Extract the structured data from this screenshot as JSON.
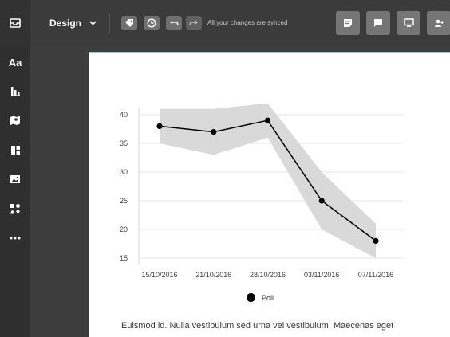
{
  "toolbar": {
    "mode_label": "Design",
    "sync_status": "All your changes are synced",
    "tools": [
      {
        "icon": "tag-icon"
      },
      {
        "icon": "clock-icon"
      },
      {
        "icon": "undo-icon"
      },
      {
        "icon": "redo-icon"
      }
    ],
    "right_buttons": [
      {
        "icon": "notes-icon"
      },
      {
        "icon": "comment-icon"
      },
      {
        "icon": "monitor-icon"
      },
      {
        "icon": "share-users-icon"
      }
    ]
  },
  "sidebar": {
    "logo_icon": "inbox-tray-icon",
    "items": [
      {
        "icon": "text-icon",
        "label": "Aa"
      },
      {
        "icon": "bar-chart-icon"
      },
      {
        "icon": "map-icon"
      },
      {
        "icon": "layout-icon"
      },
      {
        "icon": "image-icon"
      },
      {
        "icon": "shapes-icon"
      },
      {
        "icon": "more-icon"
      }
    ]
  },
  "chart_data": {
    "type": "line",
    "categories": [
      "15/10/2016",
      "21/10/2016",
      "28/10/2016",
      "03/11/2016",
      "07/11/2016"
    ],
    "series": [
      {
        "name": "Poll",
        "values": [
          38,
          37,
          39,
          25,
          18
        ],
        "band_upper": [
          41,
          41,
          42,
          30,
          21
        ],
        "band_lower": [
          35,
          33,
          36,
          20,
          15
        ]
      }
    ],
    "yticks": [
      15,
      20,
      25,
      30,
      35,
      40
    ],
    "ylim": [
      14,
      42
    ],
    "grid": true,
    "legend_position": "bottom-center",
    "colors": {
      "line": "#000000",
      "band": "#d9d9d9",
      "grid": "#e6e6e6"
    }
  },
  "legend": {
    "label": "Poll"
  },
  "body_text": "Euismod id. Nulla vestibulum sed urna vel vestibulum. Maecenas eget"
}
